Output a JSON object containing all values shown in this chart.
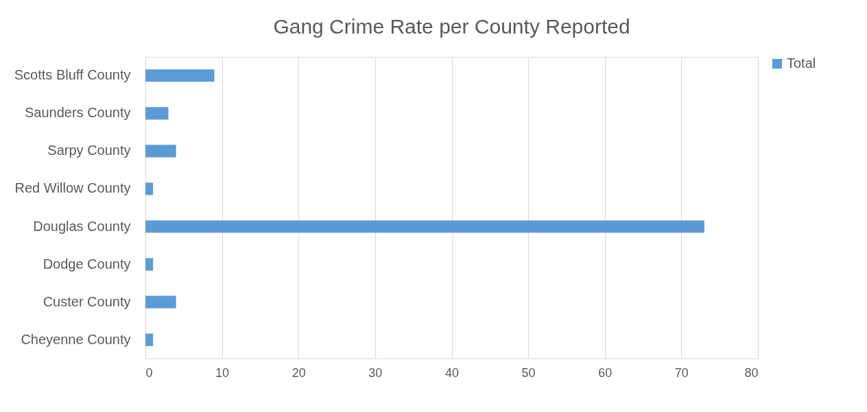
{
  "chart_data": {
    "type": "bar",
    "orientation": "horizontal",
    "title": "Gang Crime Rate per County Reported",
    "categories": [
      "Scotts Bluff County",
      "Saunders County",
      "Sarpy County",
      "Red Willow County",
      "Douglas County",
      "Dodge County",
      "Custer County",
      "Cheyenne County"
    ],
    "series": [
      {
        "name": "Total",
        "color": "#5b9bd5",
        "values": [
          9,
          3,
          4,
          1,
          73,
          1,
          4,
          1
        ]
      }
    ],
    "xlim": [
      0,
      80
    ],
    "xticks": [
      0,
      10,
      20,
      30,
      40,
      50,
      60,
      70,
      80
    ],
    "grid": "x",
    "legend": "right"
  }
}
